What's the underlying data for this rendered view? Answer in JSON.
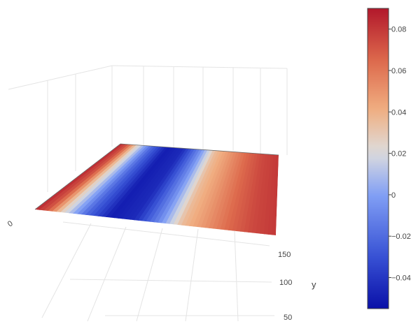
{
  "chart_data": {
    "type": "surface",
    "colorscale": "coolwarm",
    "colors": {
      "low": "#0a10a8",
      "mid": "#dddddd",
      "high": "#b2182b",
      "grid": "#e4e4e4",
      "text": "#444444"
    },
    "axes": {
      "x": {
        "tick_labels": [
          "0"
        ]
      },
      "y": {
        "title": "y",
        "tick_labels": [
          "150",
          "100",
          "50"
        ]
      },
      "z": {
        "tick_labels": []
      }
    },
    "colorbar": {
      "min": -0.055,
      "max": 0.09,
      "tick_values": [
        0.08,
        0.06,
        0.04,
        0.02,
        0,
        -0.02,
        -0.04
      ],
      "tick_labels": [
        "0.08",
        "0.06",
        "0.04",
        "0.02",
        "0",
        "−0.02",
        "−0.04"
      ]
    },
    "surface_profile": {
      "u": [
        0,
        0.05,
        0.1,
        0.2,
        0.3,
        0.4,
        0.5,
        0.6,
        0.7,
        0.8,
        0.9,
        1.0
      ],
      "z": [
        0.085,
        0.07,
        0.03,
        -0.02,
        -0.05,
        -0.045,
        -0.01,
        0.035,
        0.05,
        0.065,
        0.075,
        0.08
      ]
    }
  }
}
